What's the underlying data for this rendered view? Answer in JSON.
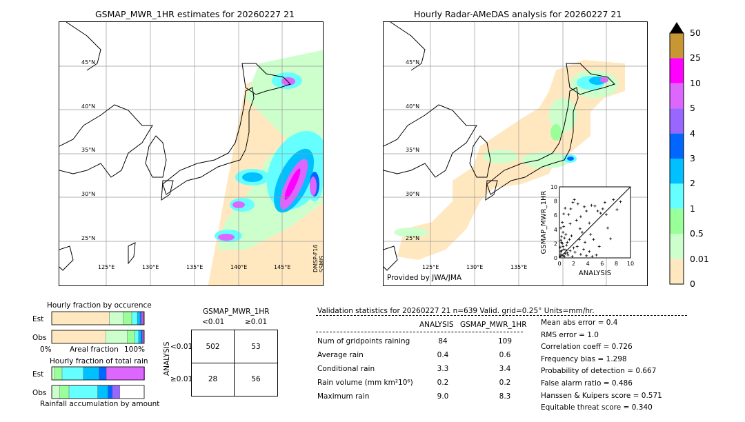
{
  "left_map": {
    "title": "GSMAP_MWR_1HR estimates for 20260227 21",
    "satellite_label_1": "DMSP-F16",
    "satellite_label_2": "SSMIS",
    "lat_labels": [
      "45°N",
      "40°N",
      "35°N",
      "30°N",
      "25°N"
    ],
    "lon_labels": [
      "125°E",
      "130°E",
      "135°E",
      "140°E",
      "145°E"
    ]
  },
  "right_map": {
    "title": "Hourly Radar-AMeDAS analysis for 20260227 21",
    "credit": "Provided by JWA/JMA",
    "lat_labels": [
      "45°N",
      "40°N",
      "35°N",
      "30°N",
      "25°N"
    ],
    "lon_labels": [
      "125°E",
      "130°E",
      "135°E"
    ]
  },
  "colorbar": {
    "ticks": [
      "50",
      "25",
      "10",
      "5",
      "4",
      "3",
      "2",
      "1",
      "0.5",
      "0.01",
      "0"
    ],
    "colors": [
      "#c89632",
      "#ff00ff",
      "#dd66ff",
      "#9966ff",
      "#0066ff",
      "#00c0ff",
      "#66ffff",
      "#99ff99",
      "#ccffcc",
      "#ffe8c0"
    ]
  },
  "chart_data": [
    {
      "type": "scatter",
      "title": "",
      "xlabel": "ANALYSIS",
      "ylabel": "GSMAP_MWR_1HR",
      "xlim": [
        0,
        10
      ],
      "ylim": [
        0,
        10
      ],
      "x_ticks": [
        "0",
        "2",
        "4",
        "6",
        "8",
        "10"
      ],
      "y_ticks": [
        "0",
        "2",
        "4",
        "6",
        "8",
        "10"
      ],
      "points": [
        [
          0.1,
          0.2
        ],
        [
          0.2,
          0.5
        ],
        [
          0.3,
          1.0
        ],
        [
          0.1,
          1.5
        ],
        [
          0.4,
          2.0
        ],
        [
          0.2,
          2.5
        ],
        [
          0.5,
          0.3
        ],
        [
          0.6,
          1.2
        ],
        [
          0.8,
          0.6
        ],
        [
          1.0,
          1.8
        ],
        [
          0.3,
          3.0
        ],
        [
          0.5,
          3.6
        ],
        [
          0.2,
          4.2
        ],
        [
          0.7,
          2.8
        ],
        [
          1.2,
          0.4
        ],
        [
          1.5,
          1.0
        ],
        [
          0.9,
          3.3
        ],
        [
          0.4,
          5.0
        ],
        [
          0.6,
          6.2
        ],
        [
          1.1,
          2.2
        ],
        [
          1.8,
          0.2
        ],
        [
          2.2,
          0.8
        ],
        [
          2.5,
          1.6
        ],
        [
          3.0,
          0.5
        ],
        [
          3.4,
          1.2
        ],
        [
          3.8,
          0.3
        ],
        [
          4.2,
          0.9
        ],
        [
          4.6,
          0.2
        ],
        [
          5.2,
          0.4
        ],
        [
          2.8,
          2.6
        ],
        [
          1.5,
          4.8
        ],
        [
          1.9,
          7.8
        ],
        [
          2.1,
          8.2
        ],
        [
          1.6,
          6.9
        ],
        [
          2.6,
          7.6
        ],
        [
          3.0,
          5.8
        ],
        [
          3.5,
          7.2
        ],
        [
          3.8,
          6.6
        ],
        [
          4.2,
          4.9
        ],
        [
          4.5,
          7.4
        ],
        [
          5.0,
          7.3
        ],
        [
          5.4,
          6.6
        ],
        [
          5.8,
          6.3
        ],
        [
          6.1,
          6.9
        ],
        [
          6.4,
          7.8
        ],
        [
          6.6,
          6.1
        ],
        [
          7.2,
          2.7
        ],
        [
          7.6,
          8.2
        ],
        [
          8.1,
          6.8
        ],
        [
          8.6,
          7.9
        ],
        [
          6.8,
          4.2
        ],
        [
          5.6,
          1.6
        ],
        [
          4.8,
          2.6
        ],
        [
          3.2,
          3.6
        ],
        [
          2.4,
          5.3
        ],
        [
          1.3,
          6.1
        ],
        [
          0.8,
          7.0
        ],
        [
          2.9,
          4.1
        ],
        [
          3.6,
          2.2
        ],
        [
          4.4,
          3.3
        ],
        [
          0.2,
          0.9
        ],
        [
          0.5,
          1.6
        ],
        [
          0.7,
          0.2
        ],
        [
          0.9,
          1.1
        ],
        [
          1.1,
          0.7
        ],
        [
          1.4,
          2.6
        ],
        [
          0.3,
          2.2
        ],
        [
          0.6,
          4.4
        ],
        [
          1.7,
          3.1
        ],
        [
          2.0,
          1.4
        ]
      ]
    },
    {
      "type": "table",
      "title": "GSMAP_MWR_1HR",
      "ylabel": "ANALYSIS",
      "columns": [
        "<0.01",
        "≥0.01"
      ],
      "rows": [
        "<0.01",
        "≥0.01"
      ],
      "cells": [
        [
          "502",
          "53"
        ],
        [
          "28",
          "56"
        ]
      ]
    },
    {
      "type": "bar",
      "title": "Hourly fraction by occurence",
      "xlabel": "Areal fraction",
      "x_ticks": [
        "0%",
        "100%"
      ],
      "categories": [
        "Est",
        "Obs"
      ],
      "series": [
        {
          "color": "#ffe8c0",
          "values": [
            0.623,
            0.584
          ]
        },
        {
          "color": "#ccffcc",
          "values": [
            0.153,
            0.234
          ]
        },
        {
          "color": "#99ff99",
          "values": [
            0.09,
            0.082
          ]
        },
        {
          "color": "#66ffff",
          "values": [
            0.06,
            0.04
          ]
        },
        {
          "color": "#00c0ff",
          "values": [
            0.03,
            0.025
          ]
        },
        {
          "color": "#0066ff",
          "values": [
            0.012,
            0.015
          ]
        },
        {
          "color": "#9966ff",
          "values": [
            0.012,
            0.01
          ]
        },
        {
          "color": "#dd66ff",
          "values": [
            0.012,
            0.008
          ]
        },
        {
          "color": "#ff00ff",
          "values": [
            0.008,
            0.002
          ]
        }
      ]
    },
    {
      "type": "bar",
      "title": "Hourly fraction of total rain",
      "xlabel": "Rainfall accumulation by amount",
      "categories": [
        "Est",
        "Obs"
      ],
      "series": [
        {
          "color": "#ffe8c0",
          "values": [
            0.002,
            0.002
          ]
        },
        {
          "color": "#ccffcc",
          "values": [
            0.03,
            0.085
          ]
        },
        {
          "color": "#99ff99",
          "values": [
            0.08,
            0.1
          ]
        },
        {
          "color": "#66ffff",
          "values": [
            0.23,
            0.31
          ]
        },
        {
          "color": "#00c0ff",
          "values": [
            0.17,
            0.11
          ]
        },
        {
          "color": "#0066ff",
          "values": [
            0.08,
            0.05
          ]
        },
        {
          "color": "#9966ff",
          "values": [
            0.0,
            0.08
          ]
        },
        {
          "color": "#dd66ff",
          "values": [
            0.42,
            0.0
          ]
        }
      ]
    }
  ],
  "validation": {
    "header": "Validation statistics for 20260227 21  n=639 Valid. grid=0.25° Units=mm/hr.",
    "col_analysis": "ANALYSIS",
    "col_gsmap": "GSMAP_MWR_1HR",
    "rows": [
      {
        "label": "Num of gridpoints raining",
        "analysis": "84",
        "gsmap": "109"
      },
      {
        "label": "Average rain",
        "analysis": "0.4",
        "gsmap": "0.6"
      },
      {
        "label": "Conditional rain",
        "analysis": "3.3",
        "gsmap": "3.4"
      },
      {
        "label": "Rain volume (mm km²10⁶)",
        "analysis": "0.2",
        "gsmap": "0.2"
      },
      {
        "label": "Maximum rain",
        "analysis": "9.0",
        "gsmap": "8.3"
      }
    ],
    "scores": [
      "Mean abs error =    0.4",
      "RMS error =    1.0",
      "Correlation coeff =  0.726",
      "Frequency bias =  1.298",
      "Probability of detection =  0.667",
      "False alarm ratio =  0.486",
      "Hanssen & Kuipers score =  0.571",
      "Equitable threat score =  0.340"
    ]
  }
}
